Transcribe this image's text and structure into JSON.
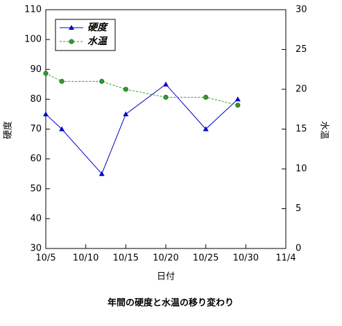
{
  "chart_data": {
    "type": "line",
    "title": "年間の硬度と水温の移り変わり",
    "x_label": "日付",
    "y_label": "硬度",
    "y2_label": "水温",
    "x": [
      "10/5",
      "10/7",
      "10/12",
      "10/15",
      "10/20",
      "10/25",
      "10/29"
    ],
    "xlim": [
      "10/5",
      "11/4"
    ],
    "xticks": [
      "10/5",
      "10/10",
      "10/15",
      "10/20",
      "10/25",
      "10/30",
      "11/4"
    ],
    "ylim": [
      30,
      110
    ],
    "yticks": [
      30,
      40,
      50,
      60,
      70,
      80,
      90,
      100,
      110
    ],
    "y2lim": [
      0,
      30
    ],
    "y2ticks": [
      0,
      5,
      10,
      15,
      20,
      25,
      30
    ],
    "legend": "upper left",
    "series": [
      {
        "name": "硬度",
        "color": "#0000cc",
        "marker": "triangle",
        "line": "solid",
        "values": [
          75,
          70,
          55,
          75,
          85,
          70,
          80
        ]
      },
      {
        "name": "水温",
        "color": "#339933",
        "marker": "circle",
        "line": "dashed",
        "axis": "y2",
        "values": [
          22,
          21,
          21,
          20,
          19,
          19,
          18
        ]
      }
    ]
  }
}
